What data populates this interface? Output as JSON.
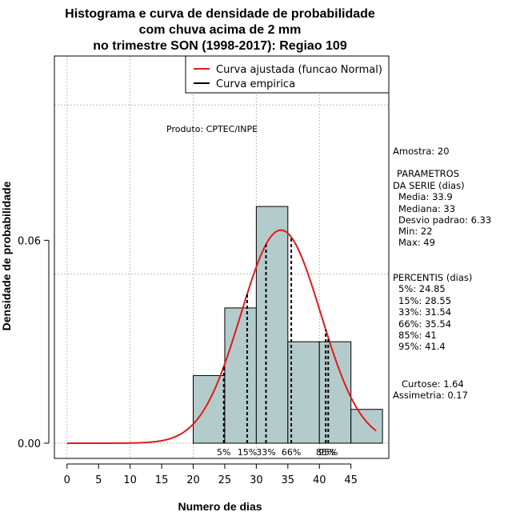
{
  "chart_data": {
    "type": "histogram",
    "title_lines": [
      "Histograma e curva de densidade de probabilidade",
      "com chuva acima de 2 mm",
      "no trimestre SON (1998-2017): Regiao 109"
    ],
    "xlabel": "Numero de dias",
    "ylabel": "Densidade de probabilidade",
    "xlim": [
      -2,
      51
    ],
    "ylim": [
      -0.0045,
      0.1145
    ],
    "xticks": [
      0,
      5,
      10,
      15,
      20,
      25,
      30,
      35,
      40,
      45
    ],
    "yticks": [
      0.0,
      0.06
    ],
    "ytick_labels": [
      "0.00",
      "0.06"
    ],
    "grid_x": [
      0,
      10,
      20,
      30,
      40
    ],
    "grid_y": [
      0.0,
      0.05,
      0.1
    ],
    "bins": [
      {
        "x0": 20,
        "x1": 25,
        "density": 0.02
      },
      {
        "x0": 25,
        "x1": 30,
        "density": 0.04
      },
      {
        "x0": 30,
        "x1": 35,
        "density": 0.07
      },
      {
        "x0": 35,
        "x1": 40,
        "density": 0.03
      },
      {
        "x0": 40,
        "x1": 45,
        "density": 0.03
      },
      {
        "x0": 45,
        "x1": 50,
        "density": 0.01
      }
    ],
    "normal_fit": {
      "mean": 33.9,
      "sd": 6.33,
      "x_from": 0,
      "x_to": 49
    },
    "percentile_lines": [
      {
        "label": "5%",
        "value": 24.85
      },
      {
        "label": "15%",
        "value": 28.55
      },
      {
        "label": "33%",
        "value": 31.54
      },
      {
        "label": "66%",
        "value": 35.54
      },
      {
        "label": "85%",
        "value": 41
      },
      {
        "label": "95%",
        "value": 41.4
      }
    ],
    "legend": {
      "position": "top-right",
      "entries": [
        {
          "label": "Curva ajustada (funcao Normal)",
          "color": "#e31a1c"
        },
        {
          "label": "Curva empirica",
          "color": "#000000"
        }
      ]
    },
    "annotation": "Produto: CPTEC/INPE",
    "bar_color": "#b4cbcb",
    "curve_color": "#e31a1c"
  },
  "stats_panel": {
    "amostra": "Amostra: 20",
    "param_title": "PARAMETROS",
    "param_sub": "DA SERIE (dias)",
    "media": "Media: 33.9",
    "mediana": "Mediana: 33",
    "desvio": "Desvio padrao: 6.33",
    "min": "Min: 22",
    "max": "Max: 49",
    "perc_title": "PERCENTIS (dias)",
    "p5": "5%: 24.85",
    "p15": "15%: 28.55",
    "p33": "33%: 31.54",
    "p66": "66%: 35.54",
    "p85": "85%: 41",
    "p95": "95%: 41.4",
    "curtose": "Curtose: 1.64",
    "assimetria": "Assimetria: 0.17"
  }
}
